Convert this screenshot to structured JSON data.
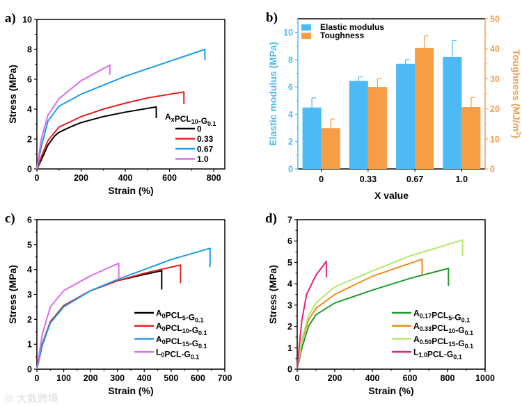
{
  "chart_data": [
    {
      "panel_label": "a)",
      "type": "line",
      "xlabel": "Strain (%)",
      "ylabel": "Stress (MPa)",
      "xlim": [
        0,
        850
      ],
      "ylim": [
        0,
        10
      ],
      "xticks": [
        0,
        200,
        400,
        600,
        800
      ],
      "yticks": [
        0,
        2,
        4,
        6,
        8,
        10
      ],
      "legend_title": [
        {
          "t": "A"
        },
        {
          "sub": "x"
        },
        {
          "t": "PCL"
        },
        {
          "sub": "10"
        },
        {
          "t": "-G"
        },
        {
          "sub": "0.1"
        }
      ],
      "series": [
        {
          "name": [
            {
              "t": "0"
            }
          ],
          "color": "#000000",
          "points": [
            [
              0,
              0
            ],
            [
              20,
              0.6
            ],
            [
              50,
              1.6
            ],
            [
              80,
              2.2
            ],
            [
              100,
              2.45
            ],
            [
              150,
              2.8
            ],
            [
              200,
              3.1
            ],
            [
              300,
              3.5
            ],
            [
              400,
              3.8
            ],
            [
              540,
              4.15
            ],
            [
              540,
              3.4
            ]
          ]
        },
        {
          "name": [
            {
              "t": "0.33"
            }
          ],
          "color": "#e8201c",
          "points": [
            [
              0,
              0
            ],
            [
              20,
              0.8
            ],
            [
              50,
              1.9
            ],
            [
              100,
              2.8
            ],
            [
              200,
              3.5
            ],
            [
              300,
              4.0
            ],
            [
              400,
              4.4
            ],
            [
              500,
              4.75
            ],
            [
              665,
              5.15
            ],
            [
              665,
              4.35
            ]
          ]
        },
        {
          "name": [
            {
              "t": "0.67"
            }
          ],
          "color": "#1c9be8",
          "points": [
            [
              0,
              0
            ],
            [
              20,
              1.5
            ],
            [
              50,
              3.2
            ],
            [
              100,
              4.2
            ],
            [
              200,
              5.0
            ],
            [
              300,
              5.6
            ],
            [
              400,
              6.2
            ],
            [
              500,
              6.7
            ],
            [
              600,
              7.2
            ],
            [
              760,
              8.0
            ],
            [
              760,
              7.3
            ]
          ]
        },
        {
          "name": [
            {
              "t": "1.0"
            }
          ],
          "color": "#d86ee8",
          "points": [
            [
              0,
              0
            ],
            [
              20,
              2.0
            ],
            [
              50,
              3.6
            ],
            [
              100,
              4.7
            ],
            [
              200,
              5.9
            ],
            [
              330,
              6.95
            ],
            [
              330,
              6.3
            ]
          ]
        }
      ]
    },
    {
      "panel_label": "b)",
      "type": "bar",
      "xlabel": "X value",
      "ylabel": "Elastic modulus (MPa)",
      "ylabel_right": [
        "Toughness (MJ/m",
        "3",
        ")"
      ],
      "categories": [
        "0",
        "0.33",
        "0.67",
        "1.0"
      ],
      "ylim": [
        0,
        11
      ],
      "ylim_right": [
        0,
        50
      ],
      "yticks": [
        0,
        2,
        4,
        6,
        8,
        10
      ],
      "yticks_right": [
        0,
        10,
        20,
        30,
        40,
        50
      ],
      "series": [
        {
          "name": "Elastic modulus",
          "color": "#4dbaf5",
          "axis": "left",
          "values": [
            4.5,
            6.45,
            7.7,
            8.2
          ],
          "errors": [
            0.7,
            0.3,
            0.3,
            1.2
          ]
        },
        {
          "name": "Toughness",
          "color": "#f79d45",
          "axis": "right",
          "values": [
            13.6,
            27.3,
            40.3,
            20.6
          ],
          "errors": [
            3.0,
            2.8,
            4.0,
            3.2
          ]
        }
      ],
      "left_axis_color": "#4dbaf5",
      "right_axis_color": "#f0a050"
    },
    {
      "panel_label": "c)",
      "type": "line",
      "xlabel": "Strain (%)",
      "ylabel": "Stress (MPa)",
      "xlim": [
        0,
        700
      ],
      "ylim": [
        0,
        6
      ],
      "xticks": [
        0,
        100,
        200,
        300,
        400,
        500,
        600,
        700
      ],
      "yticks": [
        0,
        1,
        2,
        3,
        4,
        5,
        6
      ],
      "series": [
        {
          "name": [
            {
              "t": "A"
            },
            {
              "sub": "0"
            },
            {
              "t": "PCL"
            },
            {
              "sub": "5"
            },
            {
              "t": "-G"
            },
            {
              "sub": "0.1"
            }
          ],
          "color": "#000000",
          "points": [
            [
              0,
              0
            ],
            [
              20,
              1.0
            ],
            [
              50,
              1.9
            ],
            [
              100,
              2.55
            ],
            [
              200,
              3.15
            ],
            [
              300,
              3.55
            ],
            [
              400,
              3.8
            ],
            [
              465,
              3.95
            ],
            [
              465,
              3.2
            ]
          ]
        },
        {
          "name": [
            {
              "t": "A"
            },
            {
              "sub": "0"
            },
            {
              "t": "PCL"
            },
            {
              "sub": "10"
            },
            {
              "t": "-G"
            },
            {
              "sub": "0.1"
            }
          ],
          "color": "#e8201c",
          "points": [
            [
              0,
              0
            ],
            [
              20,
              1.0
            ],
            [
              50,
              1.9
            ],
            [
              100,
              2.55
            ],
            [
              200,
              3.15
            ],
            [
              300,
              3.55
            ],
            [
              400,
              3.85
            ],
            [
              535,
              4.18
            ],
            [
              535,
              3.45
            ]
          ]
        },
        {
          "name": [
            {
              "t": "A"
            },
            {
              "sub": "0"
            },
            {
              "t": "PCL"
            },
            {
              "sub": "15"
            },
            {
              "t": "-G"
            },
            {
              "sub": "0.1"
            }
          ],
          "color": "#1c9be8",
          "points": [
            [
              0,
              0
            ],
            [
              20,
              0.95
            ],
            [
              50,
              1.85
            ],
            [
              100,
              2.5
            ],
            [
              200,
              3.15
            ],
            [
              300,
              3.6
            ],
            [
              400,
              4.0
            ],
            [
              500,
              4.4
            ],
            [
              645,
              4.85
            ],
            [
              645,
              4.1
            ]
          ]
        },
        {
          "name": [
            {
              "t": "L"
            },
            {
              "sub": "0"
            },
            {
              "t": "PCL-G"
            },
            {
              "sub": "0.1"
            }
          ],
          "color": "#d86ee8",
          "points": [
            [
              0,
              0
            ],
            [
              20,
              1.4
            ],
            [
              50,
              2.5
            ],
            [
              100,
              3.15
            ],
            [
              200,
              3.75
            ],
            [
              305,
              4.25
            ],
            [
              305,
              3.6
            ]
          ]
        }
      ]
    },
    {
      "panel_label": "d)",
      "type": "line",
      "xlabel": "Strain (%)",
      "ylabel": "Stress (MPa)",
      "xlim": [
        0,
        1000
      ],
      "ylim": [
        0,
        7
      ],
      "xticks": [
        0,
        200,
        400,
        600,
        800,
        1000
      ],
      "yticks": [
        0,
        1,
        2,
        3,
        4,
        5,
        6,
        7
      ],
      "series": [
        {
          "name": [
            {
              "t": "A"
            },
            {
              "sub": "0.17"
            },
            {
              "t": "PCL"
            },
            {
              "sub": "5"
            },
            {
              "t": "-G"
            },
            {
              "sub": "0.1"
            }
          ],
          "color": "#1e9a2e",
          "points": [
            [
              0,
              0
            ],
            [
              25,
              1.0
            ],
            [
              60,
              2.0
            ],
            [
              100,
              2.55
            ],
            [
              200,
              3.1
            ],
            [
              400,
              3.7
            ],
            [
              600,
              4.25
            ],
            [
              805,
              4.72
            ],
            [
              805,
              3.9
            ]
          ]
        },
        {
          "name": [
            {
              "t": "A"
            },
            {
              "sub": "0.33"
            },
            {
              "t": "PCL"
            },
            {
              "sub": "10"
            },
            {
              "t": "-G"
            },
            {
              "sub": "0.1"
            }
          ],
          "color": "#f08a1c",
          "points": [
            [
              0,
              0
            ],
            [
              25,
              1.3
            ],
            [
              60,
              2.3
            ],
            [
              100,
              2.85
            ],
            [
              200,
              3.5
            ],
            [
              400,
              4.35
            ],
            [
              665,
              5.15
            ],
            [
              665,
              4.4
            ]
          ]
        },
        {
          "name": [
            {
              "t": "A"
            },
            {
              "sub": "0.50"
            },
            {
              "t": "PCL"
            },
            {
              "sub": "15"
            },
            {
              "t": "-G"
            },
            {
              "sub": "0.1"
            }
          ],
          "color": "#b4e86a",
          "points": [
            [
              0,
              0
            ],
            [
              25,
              1.4
            ],
            [
              60,
              2.5
            ],
            [
              100,
              3.1
            ],
            [
              200,
              3.85
            ],
            [
              400,
              4.6
            ],
            [
              600,
              5.3
            ],
            [
              880,
              6.05
            ],
            [
              880,
              5.3
            ]
          ]
        },
        {
          "name": [
            {
              "t": "L"
            },
            {
              "sub": "1.0"
            },
            {
              "t": "PCL-G"
            },
            {
              "sub": "0.1"
            }
          ],
          "color": "#e8207a",
          "points": [
            [
              0,
              0
            ],
            [
              10,
              1.0
            ],
            [
              25,
              2.3
            ],
            [
              50,
              3.5
            ],
            [
              100,
              4.4
            ],
            [
              155,
              5.05
            ],
            [
              155,
              4.3
            ]
          ]
        }
      ]
    }
  ],
  "watermark": "大数跨境"
}
